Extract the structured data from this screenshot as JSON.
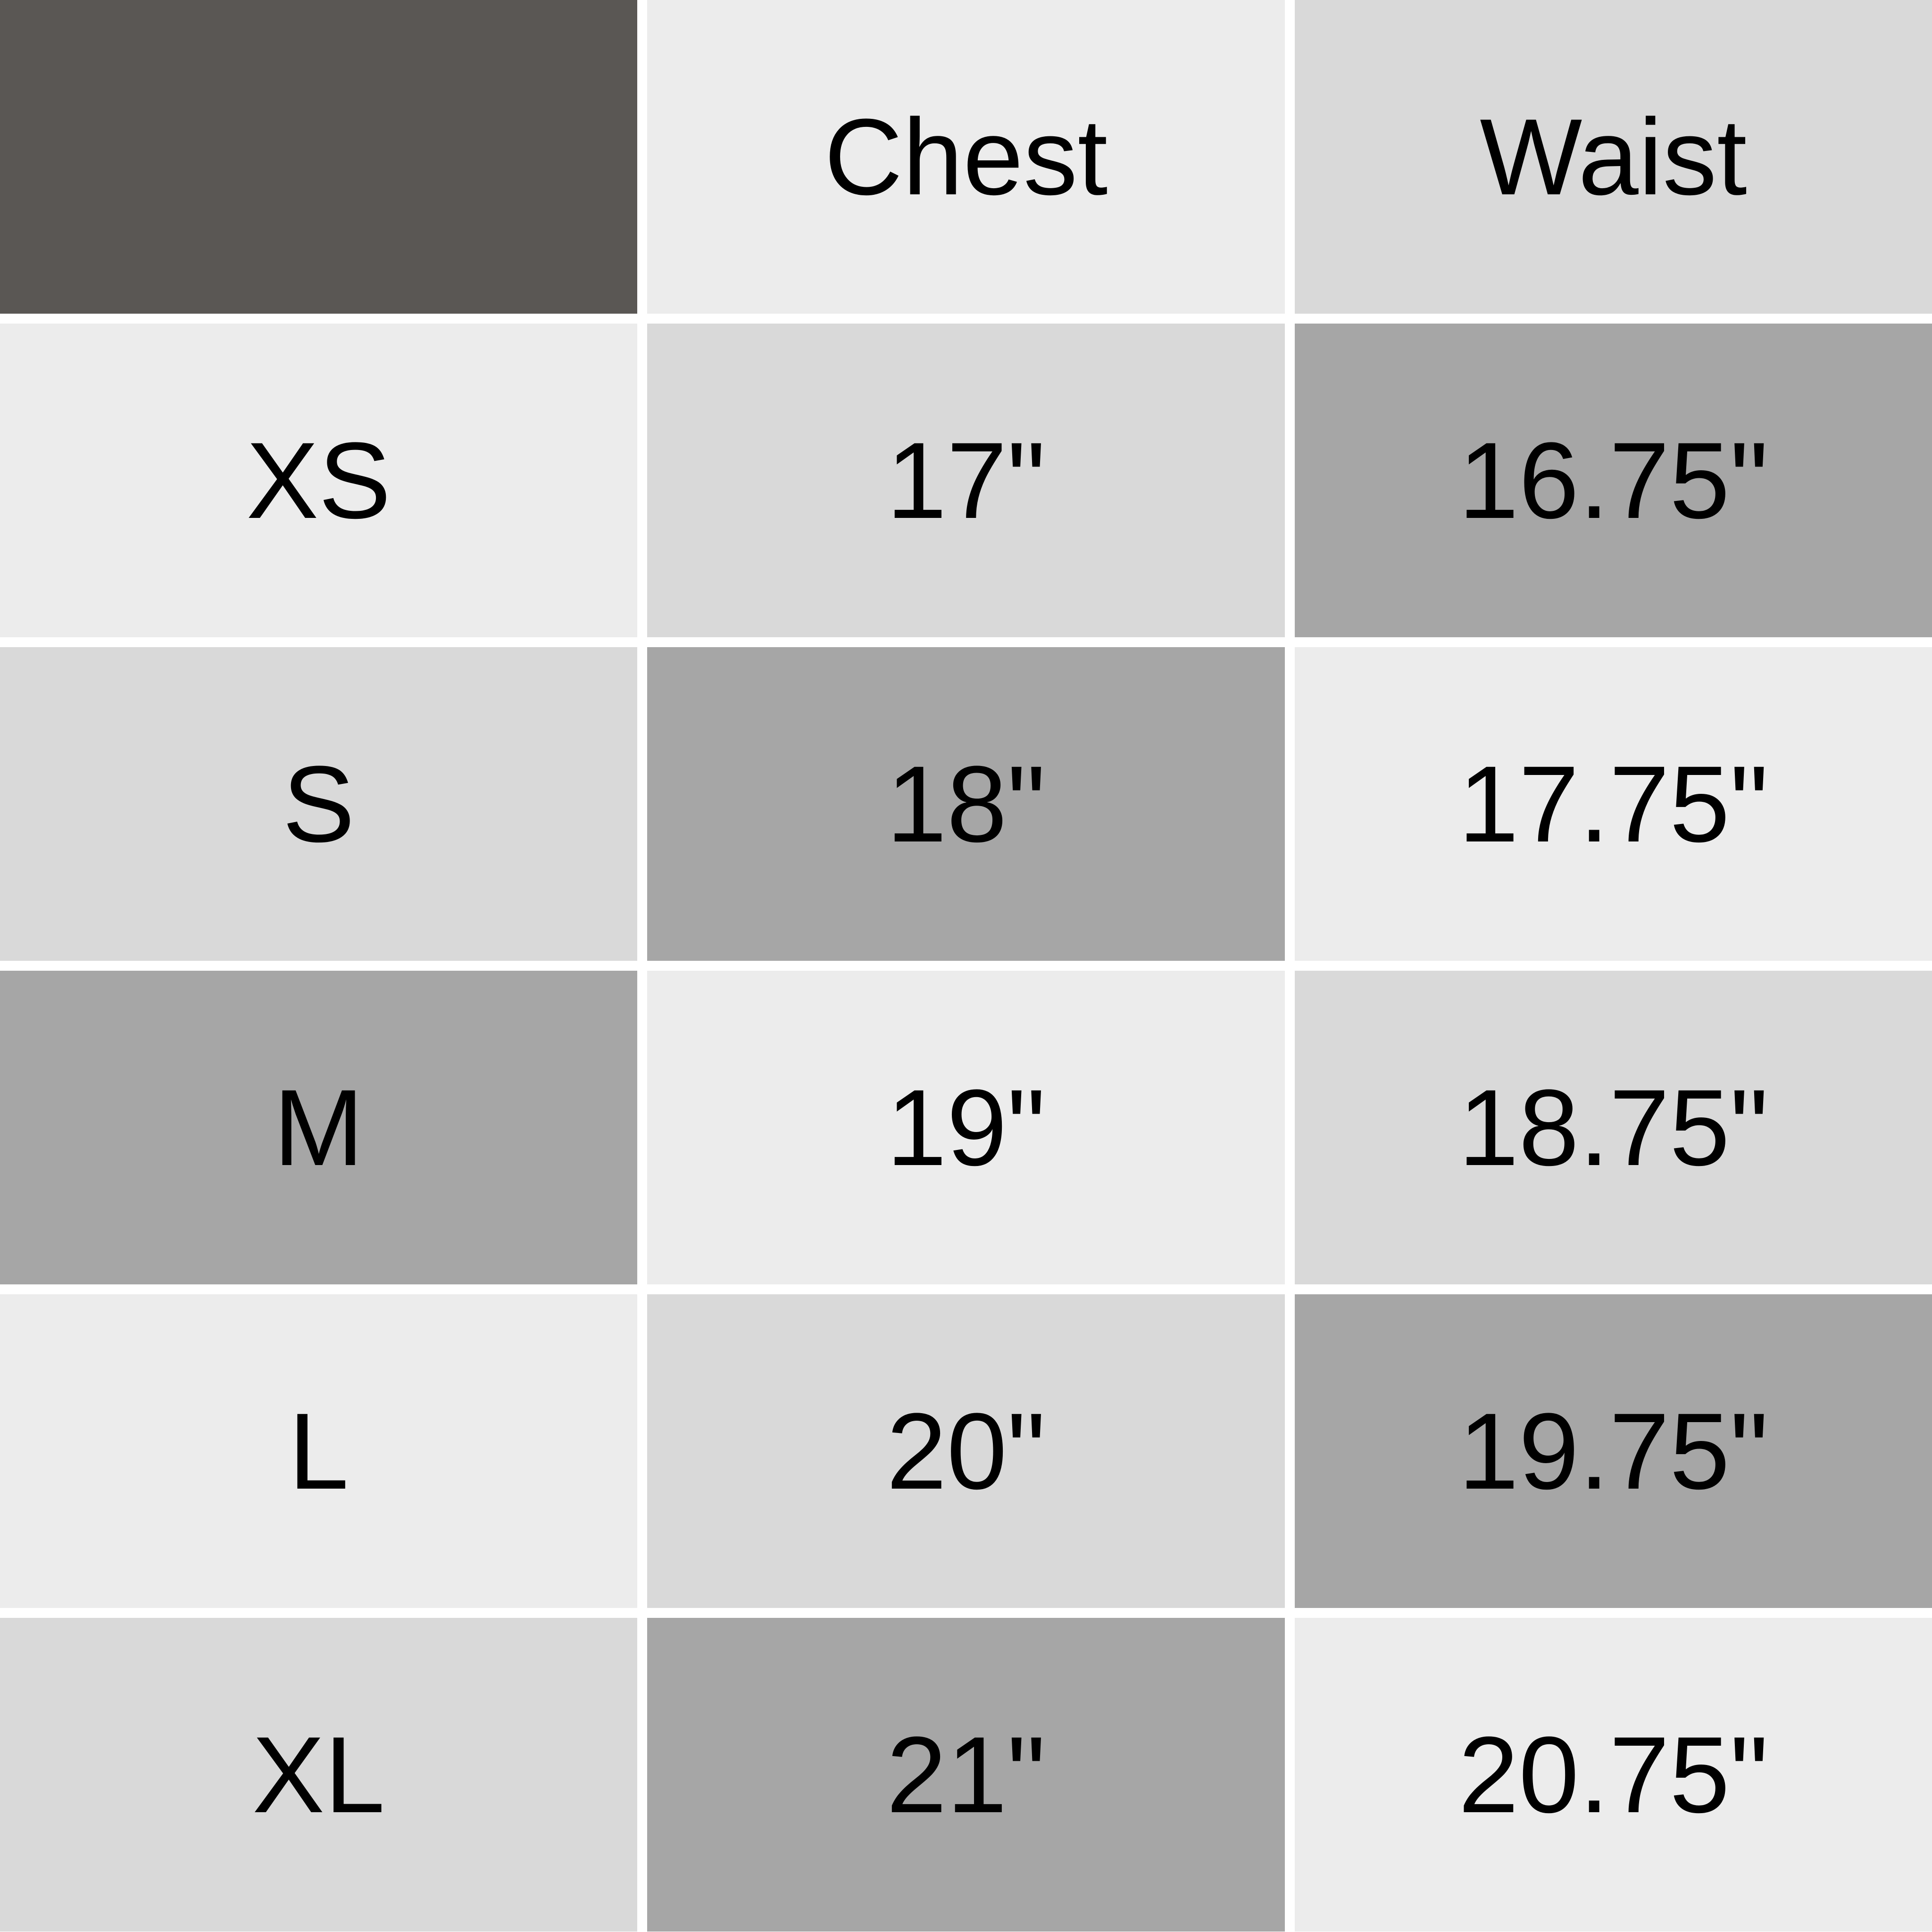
{
  "colors": {
    "corner": "#5a5754",
    "light": "#ececec",
    "mid": "#d9d9d9",
    "dark": "#a6a6a6",
    "text": "#000000"
  },
  "header": {
    "corner": "",
    "columns": [
      "Chest",
      "Waist"
    ],
    "tones": [
      "corner",
      "light",
      "mid"
    ]
  },
  "rows": [
    {
      "size": "XS",
      "chest": "17\"",
      "waist": "16.75\"",
      "tones": [
        "light",
        "mid",
        "dark"
      ]
    },
    {
      "size": "S",
      "chest": "18\"",
      "waist": "17.75\"",
      "tones": [
        "mid",
        "dark",
        "light"
      ]
    },
    {
      "size": "M",
      "chest": "19\"",
      "waist": "18.75\"",
      "tones": [
        "dark",
        "light",
        "mid"
      ]
    },
    {
      "size": "L",
      "chest": "20\"",
      "waist": "19.75\"",
      "tones": [
        "light",
        "mid",
        "dark"
      ]
    },
    {
      "size": "XL",
      "chest": "21\"",
      "waist": "20.75\"",
      "tones": [
        "mid",
        "dark",
        "light"
      ]
    }
  ]
}
